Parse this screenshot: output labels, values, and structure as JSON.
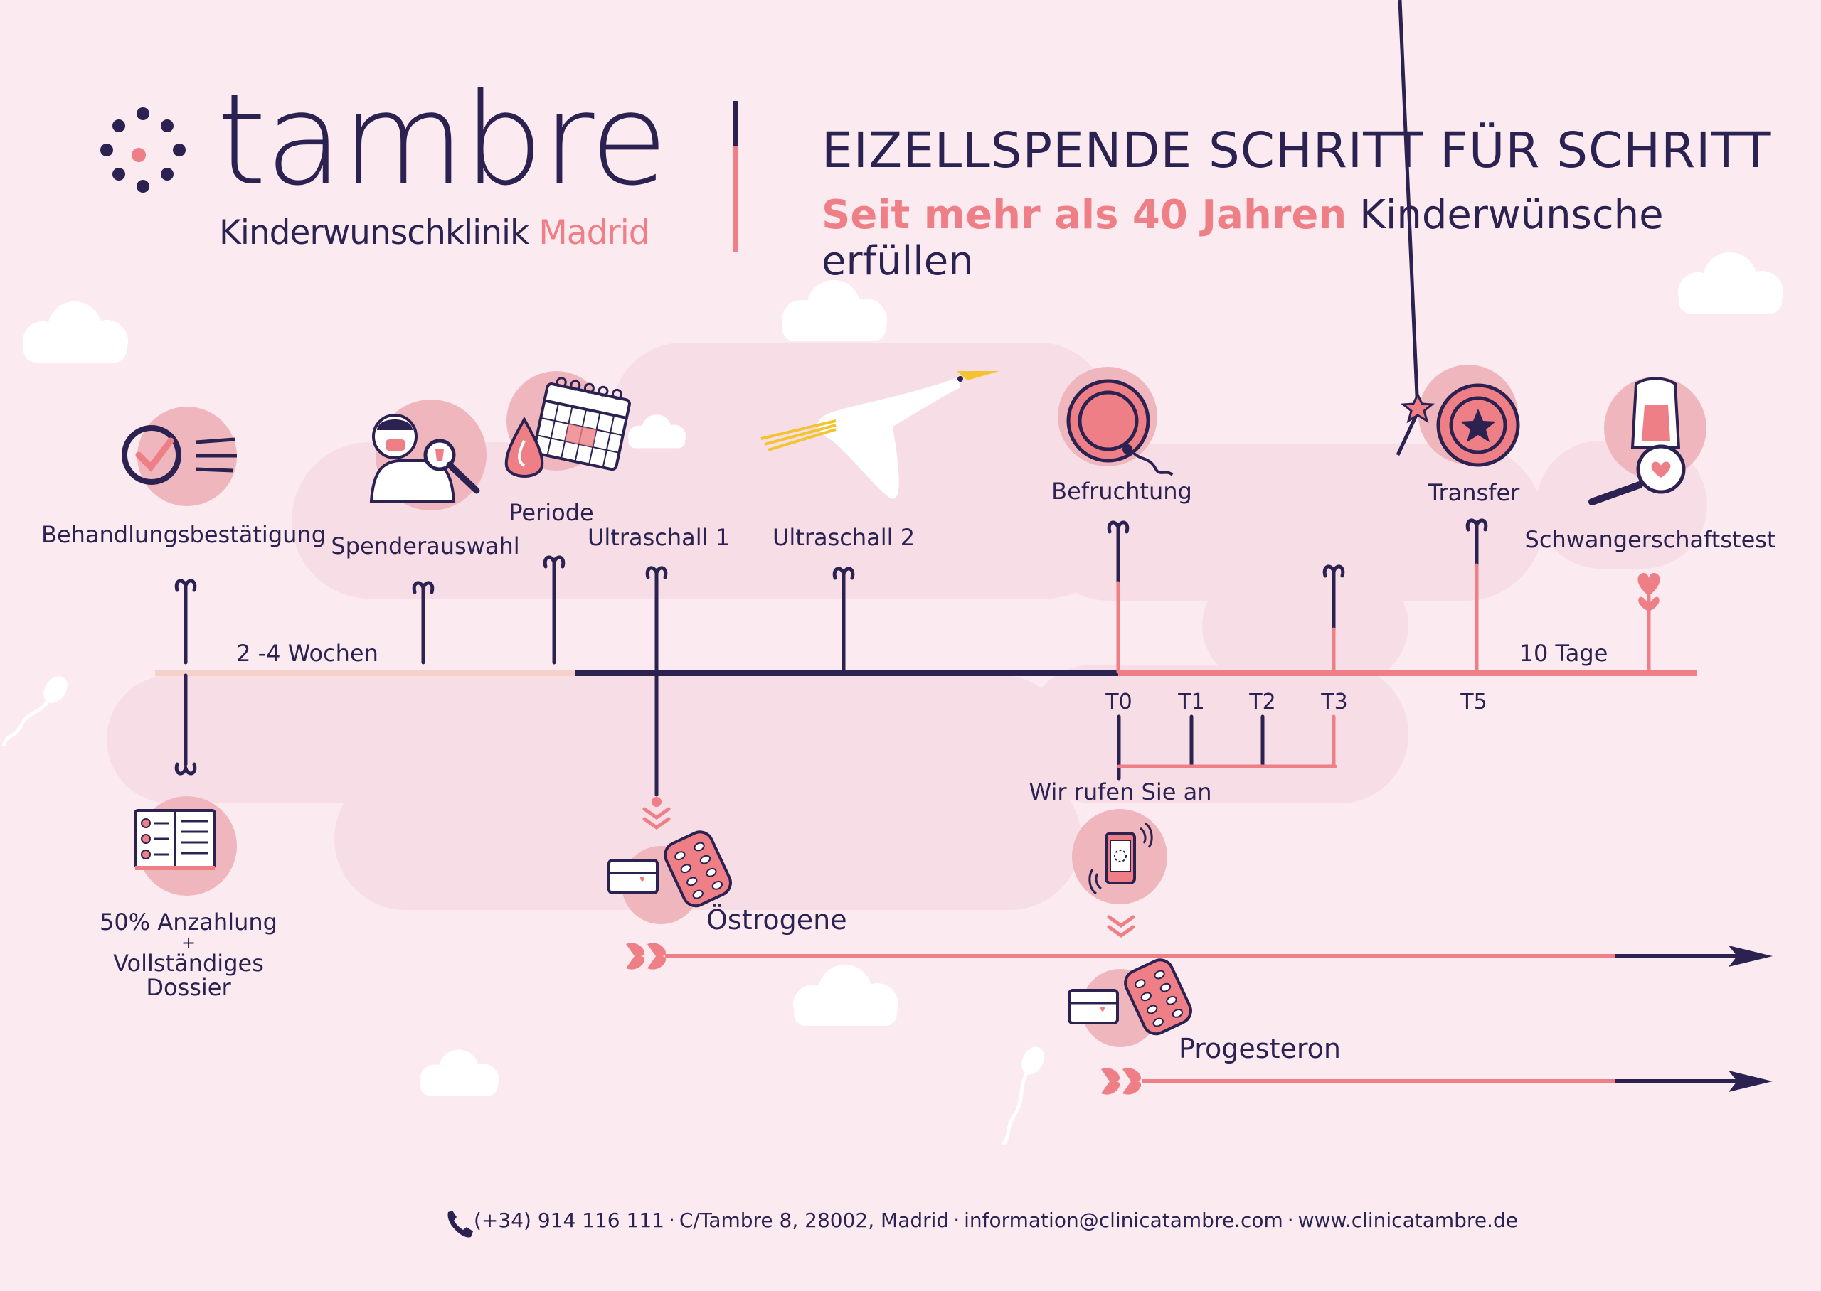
{
  "brand": {
    "name": "tambre",
    "sub_main": "Kinderwunschklinik",
    "sub_accent": "Madrid"
  },
  "header": {
    "title": "EIZELLSPENDE SCHRITT FÜR SCHRITT",
    "subtitle_accent": "Seit mehr als 40 Jahren",
    "subtitle_rest": "Kinderwünsche erfüllen"
  },
  "steps": {
    "behandlung": "Behandlungsbestätigung",
    "spender": "Spenderauswahl",
    "periode": "Periode",
    "ultraschall1": "Ultraschall 1",
    "ultraschall2": "Ultraschall 2",
    "befruchtung": "Befruchtung",
    "transfer": "Transfer",
    "test": "Schwangerschaftstest"
  },
  "durations": {
    "weeks": "2 -4 Wochen",
    "days": "10 Tage"
  },
  "ticks": {
    "t0": "T0",
    "t1": "T1",
    "t2": "T2",
    "t3": "T3",
    "t5": "T5"
  },
  "call": "Wir rufen Sie an",
  "payment": {
    "line1": "50% Anzahlung",
    "plus": "+",
    "line2": "Vollständiges",
    "line3": "Dossier"
  },
  "meds": {
    "estrogen": "Östrogene",
    "progesterone": "Progesteron"
  },
  "footer": {
    "phone": "(+34) 914 116 111",
    "address": "C/Tambre 8, 28002, Madrid",
    "email": "information@clinicatambre.com",
    "web": "www.clinicatambre.de",
    "sep": "·"
  },
  "colors": {
    "navy": "#2b2252",
    "coral": "#ef7f86",
    "pink_bubble": "#efb6bd",
    "background": "#fbebf0",
    "band": "#f7d9e2"
  },
  "icons": [
    "dots-logo-icon",
    "check-icon",
    "doctor-icon",
    "calendar-icon",
    "drop-icon",
    "stork-icon",
    "egg-icon",
    "star-embryo-icon",
    "magic-wand-icon",
    "pregnancy-test-icon",
    "book-icon",
    "phone-icon",
    "pills-icon",
    "cloud-icon",
    "sperm-icon",
    "heart-icon",
    "arrow-icon"
  ]
}
